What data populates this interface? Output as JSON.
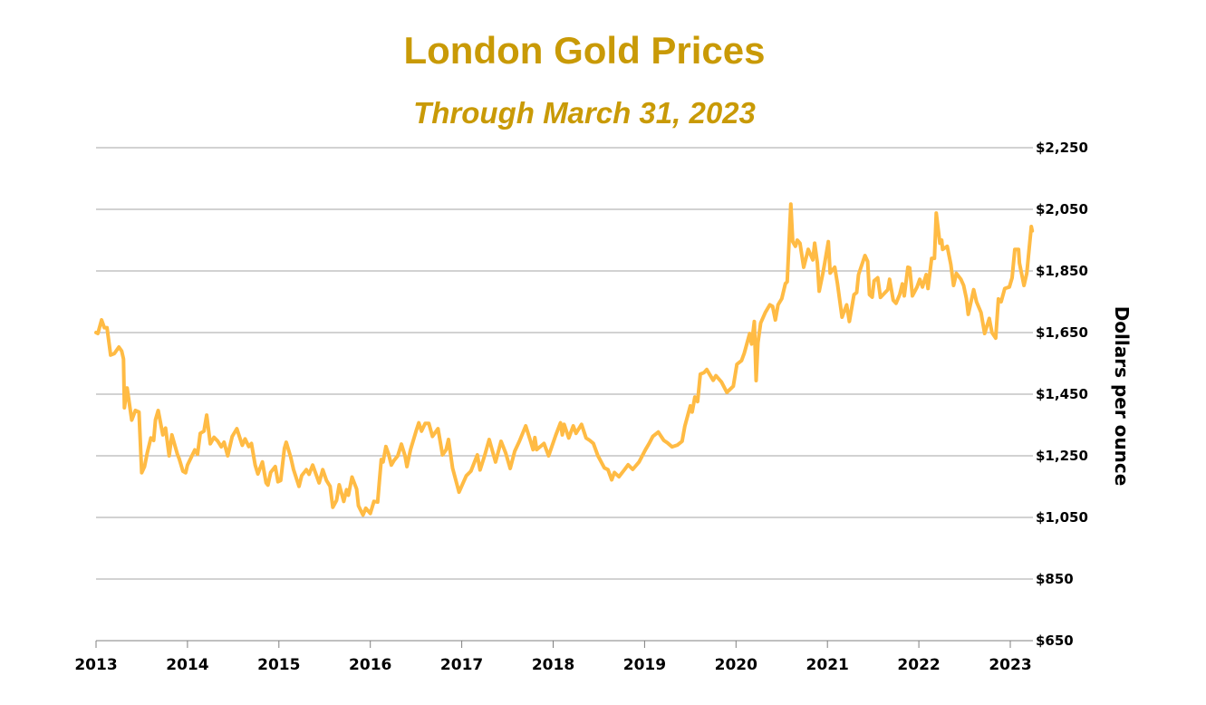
{
  "chart_data": {
    "type": "line",
    "title": "London Gold Prices",
    "subtitle": "Through March 31, 2023",
    "xlabel": "",
    "ylabel": "Dollars per ounce",
    "xlim": [
      2013,
      2023.25
    ],
    "ylim": [
      650,
      2250
    ],
    "x_ticks": [
      2013,
      2014,
      2015,
      2016,
      2017,
      2018,
      2019,
      2020,
      2021,
      2022,
      2023
    ],
    "x_tick_labels": [
      "2013",
      "2014",
      "2015",
      "2016",
      "2017",
      "2018",
      "2019",
      "2020",
      "2021",
      "2022",
      "2023"
    ],
    "y_ticks": [
      650,
      850,
      1050,
      1250,
      1450,
      1650,
      1850,
      2050,
      2250
    ],
    "y_tick_labels": [
      "$650",
      "$850",
      "$1,050",
      "$1,250",
      "$1,450",
      "$1,650",
      "$1,850",
      "$2,050",
      "$2,250"
    ],
    "y_axis_side": "right",
    "grid": "horizontal",
    "line_color": "#FFBB44",
    "title_color": "#C99A06",
    "series": [
      {
        "points": [
          [
            2013.0,
            1650
          ],
          [
            2013.02,
            1647
          ],
          [
            2013.06,
            1691
          ],
          [
            2013.09,
            1666
          ],
          [
            2013.12,
            1666
          ],
          [
            2013.16,
            1577
          ],
          [
            2013.2,
            1582
          ],
          [
            2013.25,
            1603
          ],
          [
            2013.28,
            1590
          ],
          [
            2013.3,
            1564
          ],
          [
            2013.31,
            1406
          ],
          [
            2013.34,
            1470
          ],
          [
            2013.39,
            1366
          ],
          [
            2013.43,
            1397
          ],
          [
            2013.47,
            1392
          ],
          [
            2013.5,
            1195
          ],
          [
            2013.53,
            1215
          ],
          [
            2013.56,
            1259
          ],
          [
            2013.6,
            1308
          ],
          [
            2013.63,
            1300
          ],
          [
            2013.65,
            1367
          ],
          [
            2013.68,
            1397
          ],
          [
            2013.73,
            1318
          ],
          [
            2013.76,
            1340
          ],
          [
            2013.8,
            1250
          ],
          [
            2013.83,
            1318
          ],
          [
            2013.89,
            1255
          ],
          [
            2013.91,
            1240
          ],
          [
            2013.95,
            1200
          ],
          [
            2013.98,
            1195
          ],
          [
            2014.0,
            1220
          ],
          [
            2014.08,
            1269
          ],
          [
            2014.11,
            1255
          ],
          [
            2014.14,
            1323
          ],
          [
            2014.18,
            1330
          ],
          [
            2014.21,
            1382
          ],
          [
            2014.25,
            1289
          ],
          [
            2014.29,
            1310
          ],
          [
            2014.33,
            1298
          ],
          [
            2014.37,
            1279
          ],
          [
            2014.4,
            1294
          ],
          [
            2014.44,
            1250
          ],
          [
            2014.49,
            1313
          ],
          [
            2014.54,
            1338
          ],
          [
            2014.6,
            1284
          ],
          [
            2014.63,
            1305
          ],
          [
            2014.67,
            1280
          ],
          [
            2014.7,
            1290
          ],
          [
            2014.74,
            1220
          ],
          [
            2014.77,
            1191
          ],
          [
            2014.82,
            1230
          ],
          [
            2014.86,
            1162
          ],
          [
            2014.88,
            1155
          ],
          [
            2014.91,
            1196
          ],
          [
            2014.96,
            1215
          ],
          [
            2014.99,
            1166
          ],
          [
            2015.02,
            1170
          ],
          [
            2015.06,
            1274
          ],
          [
            2015.08,
            1294
          ],
          [
            2015.13,
            1245
          ],
          [
            2015.16,
            1206
          ],
          [
            2015.22,
            1151
          ],
          [
            2015.25,
            1186
          ],
          [
            2015.3,
            1205
          ],
          [
            2015.33,
            1190
          ],
          [
            2015.37,
            1220
          ],
          [
            2015.44,
            1162
          ],
          [
            2015.48,
            1205
          ],
          [
            2015.52,
            1170
          ],
          [
            2015.56,
            1151
          ],
          [
            2015.59,
            1083
          ],
          [
            2015.63,
            1105
          ],
          [
            2015.66,
            1156
          ],
          [
            2015.71,
            1102
          ],
          [
            2015.74,
            1140
          ],
          [
            2015.76,
            1122
          ],
          [
            2015.8,
            1181
          ],
          [
            2015.85,
            1142
          ],
          [
            2015.87,
            1088
          ],
          [
            2015.92,
            1058
          ],
          [
            2015.95,
            1080
          ],
          [
            2016.0,
            1063
          ],
          [
            2016.04,
            1102
          ],
          [
            2016.08,
            1100
          ],
          [
            2016.1,
            1171
          ],
          [
            2016.12,
            1238
          ],
          [
            2016.14,
            1230
          ],
          [
            2016.17,
            1280
          ],
          [
            2016.2,
            1255
          ],
          [
            2016.23,
            1220
          ],
          [
            2016.26,
            1235
          ],
          [
            2016.3,
            1250
          ],
          [
            2016.34,
            1288
          ],
          [
            2016.38,
            1250
          ],
          [
            2016.4,
            1215
          ],
          [
            2016.44,
            1270
          ],
          [
            2016.5,
            1330
          ],
          [
            2016.53,
            1357
          ],
          [
            2016.56,
            1330
          ],
          [
            2016.6,
            1355
          ],
          [
            2016.64,
            1355
          ],
          [
            2016.68,
            1313
          ],
          [
            2016.74,
            1338
          ],
          [
            2016.79,
            1253
          ],
          [
            2016.83,
            1270
          ],
          [
            2016.855,
            1303
          ],
          [
            2016.9,
            1210
          ],
          [
            2016.97,
            1132
          ],
          [
            2017.05,
            1185
          ],
          [
            2017.1,
            1200
          ],
          [
            2017.17,
            1253
          ],
          [
            2017.2,
            1204
          ],
          [
            2017.25,
            1250
          ],
          [
            2017.3,
            1303
          ],
          [
            2017.37,
            1230
          ],
          [
            2017.43,
            1297
          ],
          [
            2017.48,
            1260
          ],
          [
            2017.53,
            1209
          ],
          [
            2017.58,
            1265
          ],
          [
            2017.63,
            1297
          ],
          [
            2017.7,
            1347
          ],
          [
            2017.75,
            1300
          ],
          [
            2017.78,
            1270
          ],
          [
            2017.8,
            1309
          ],
          [
            2017.82,
            1270
          ],
          [
            2017.9,
            1290
          ],
          [
            2017.95,
            1250
          ],
          [
            2018.03,
            1318
          ],
          [
            2018.08,
            1357
          ],
          [
            2018.1,
            1318
          ],
          [
            2018.12,
            1352
          ],
          [
            2018.17,
            1308
          ],
          [
            2018.22,
            1347
          ],
          [
            2018.25,
            1323
          ],
          [
            2018.31,
            1352
          ],
          [
            2018.36,
            1308
          ],
          [
            2018.4,
            1300
          ],
          [
            2018.44,
            1290
          ],
          [
            2018.49,
            1250
          ],
          [
            2018.56,
            1211
          ],
          [
            2018.6,
            1205
          ],
          [
            2018.64,
            1172
          ],
          [
            2018.67,
            1196
          ],
          [
            2018.72,
            1182
          ],
          [
            2018.78,
            1205
          ],
          [
            2018.82,
            1221
          ],
          [
            2018.87,
            1206
          ],
          [
            2018.94,
            1230
          ],
          [
            2019.01,
            1270
          ],
          [
            2019.05,
            1290
          ],
          [
            2019.09,
            1313
          ],
          [
            2019.15,
            1327
          ],
          [
            2019.21,
            1300
          ],
          [
            2019.25,
            1292
          ],
          [
            2019.3,
            1279
          ],
          [
            2019.36,
            1285
          ],
          [
            2019.41,
            1297
          ],
          [
            2019.44,
            1346
          ],
          [
            2019.5,
            1412
          ],
          [
            2019.52,
            1392
          ],
          [
            2019.55,
            1441
          ],
          [
            2019.58,
            1426
          ],
          [
            2019.61,
            1515
          ],
          [
            2019.65,
            1520
          ],
          [
            2019.68,
            1530
          ],
          [
            2019.75,
            1495
          ],
          [
            2019.78,
            1510
          ],
          [
            2019.84,
            1490
          ],
          [
            2019.9,
            1456
          ],
          [
            2019.97,
            1476
          ],
          [
            2020.01,
            1547
          ],
          [
            2020.06,
            1559
          ],
          [
            2020.09,
            1583
          ],
          [
            2020.15,
            1647
          ],
          [
            2020.17,
            1613
          ],
          [
            2020.2,
            1686
          ],
          [
            2020.22,
            1494
          ],
          [
            2020.24,
            1617
          ],
          [
            2020.27,
            1681
          ],
          [
            2020.32,
            1715
          ],
          [
            2020.37,
            1740
          ],
          [
            2020.4,
            1735
          ],
          [
            2020.43,
            1691
          ],
          [
            2020.46,
            1740
          ],
          [
            2020.5,
            1760
          ],
          [
            2020.54,
            1809
          ],
          [
            2020.56,
            1815
          ],
          [
            2020.6,
            2067
          ],
          [
            2020.62,
            1945
          ],
          [
            2020.65,
            1930
          ],
          [
            2020.67,
            1950
          ],
          [
            2020.7,
            1940
          ],
          [
            2020.74,
            1862
          ],
          [
            2020.79,
            1920
          ],
          [
            2020.84,
            1886
          ],
          [
            2020.86,
            1940
          ],
          [
            2020.89,
            1876
          ],
          [
            2020.91,
            1784
          ],
          [
            2020.95,
            1843
          ],
          [
            2020.97,
            1876
          ],
          [
            2021.01,
            1945
          ],
          [
            2021.03,
            1843
          ],
          [
            2021.08,
            1862
          ],
          [
            2021.11,
            1808
          ],
          [
            2021.16,
            1700
          ],
          [
            2021.21,
            1740
          ],
          [
            2021.24,
            1686
          ],
          [
            2021.29,
            1773
          ],
          [
            2021.32,
            1780
          ],
          [
            2021.34,
            1838
          ],
          [
            2021.41,
            1900
          ],
          [
            2021.44,
            1881
          ],
          [
            2021.46,
            1773
          ],
          [
            2021.49,
            1765
          ],
          [
            2021.51,
            1818
          ],
          [
            2021.55,
            1828
          ],
          [
            2021.58,
            1764
          ],
          [
            2021.66,
            1789
          ],
          [
            2021.68,
            1823
          ],
          [
            2021.72,
            1755
          ],
          [
            2021.75,
            1745
          ],
          [
            2021.79,
            1773
          ],
          [
            2021.82,
            1808
          ],
          [
            2021.84,
            1769
          ],
          [
            2021.88,
            1862
          ],
          [
            2021.9,
            1860
          ],
          [
            2021.93,
            1769
          ],
          [
            2021.98,
            1798
          ],
          [
            2022.01,
            1823
          ],
          [
            2022.04,
            1798
          ],
          [
            2022.08,
            1838
          ],
          [
            2022.1,
            1793
          ],
          [
            2022.14,
            1891
          ],
          [
            2022.17,
            1891
          ],
          [
            2022.19,
            2038
          ],
          [
            2022.23,
            1940
          ],
          [
            2022.25,
            1950
          ],
          [
            2022.26,
            1920
          ],
          [
            2022.31,
            1930
          ],
          [
            2022.35,
            1871
          ],
          [
            2022.38,
            1803
          ],
          [
            2022.41,
            1842
          ],
          [
            2022.46,
            1823
          ],
          [
            2022.49,
            1803
          ],
          [
            2022.52,
            1760
          ],
          [
            2022.54,
            1709
          ],
          [
            2022.6,
            1789
          ],
          [
            2022.63,
            1750
          ],
          [
            2022.68,
            1715
          ],
          [
            2022.72,
            1647
          ],
          [
            2022.77,
            1696
          ],
          [
            2022.8,
            1650
          ],
          [
            2022.84,
            1632
          ],
          [
            2022.87,
            1759
          ],
          [
            2022.9,
            1750
          ],
          [
            2022.94,
            1793
          ],
          [
            2022.99,
            1798
          ],
          [
            2023.02,
            1828
          ],
          [
            2023.05,
            1920
          ],
          [
            2023.09,
            1920
          ],
          [
            2023.1,
            1876
          ],
          [
            2023.15,
            1803
          ],
          [
            2023.18,
            1842
          ],
          [
            2023.23,
            1994
          ],
          [
            2023.24,
            1980
          ]
        ]
      }
    ]
  }
}
